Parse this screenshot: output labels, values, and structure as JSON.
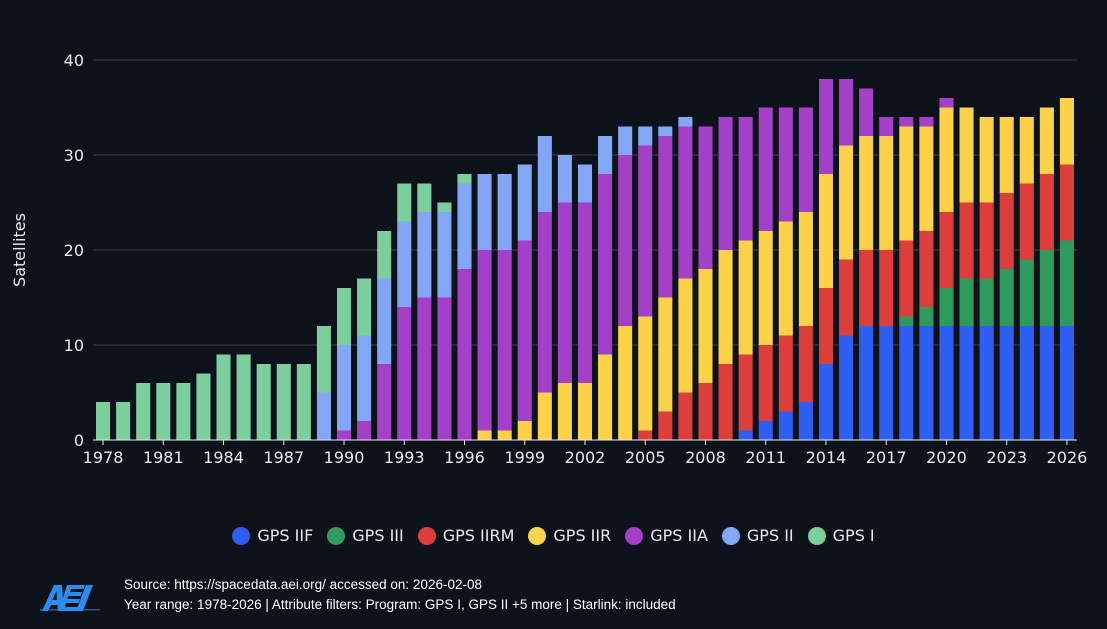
{
  "chart_data": {
    "type": "bar",
    "stacked": true,
    "ylabel": "Satellites",
    "xlabel": "",
    "ylim": [
      0,
      40
    ],
    "yticks": [
      0,
      10,
      20,
      30,
      40
    ],
    "xticks": [
      "1978",
      "1981",
      "1984",
      "1987",
      "1990",
      "1993",
      "1996",
      "1999",
      "2002",
      "2005",
      "2008",
      "2011",
      "2014",
      "2017",
      "2020",
      "2023",
      "2026"
    ],
    "categories": [
      1978,
      1979,
      1980,
      1981,
      1982,
      1983,
      1984,
      1985,
      1986,
      1987,
      1988,
      1989,
      1990,
      1991,
      1992,
      1993,
      1994,
      1995,
      1996,
      1997,
      1998,
      1999,
      2000,
      2001,
      2002,
      2003,
      2004,
      2005,
      2006,
      2007,
      2008,
      2009,
      2010,
      2011,
      2012,
      2013,
      2014,
      2015,
      2016,
      2017,
      2018,
      2019,
      2020,
      2021,
      2022,
      2023,
      2024,
      2025,
      2026
    ],
    "series": [
      {
        "name": "GPS IIF",
        "color": "#2f5ff2",
        "values": [
          0,
          0,
          0,
          0,
          0,
          0,
          0,
          0,
          0,
          0,
          0,
          0,
          0,
          0,
          0,
          0,
          0,
          0,
          0,
          0,
          0,
          0,
          0,
          0,
          0,
          0,
          0,
          0,
          0,
          0,
          0,
          0,
          1,
          2,
          3,
          4,
          8,
          11,
          12,
          12,
          12,
          12,
          12,
          12,
          12,
          12,
          12,
          12,
          12
        ]
      },
      {
        "name": "GPS III",
        "color": "#2e9a5e",
        "values": [
          0,
          0,
          0,
          0,
          0,
          0,
          0,
          0,
          0,
          0,
          0,
          0,
          0,
          0,
          0,
          0,
          0,
          0,
          0,
          0,
          0,
          0,
          0,
          0,
          0,
          0,
          0,
          0,
          0,
          0,
          0,
          0,
          0,
          0,
          0,
          0,
          0,
          0,
          0,
          0,
          1,
          2,
          4,
          5,
          5,
          6,
          7,
          8,
          9
        ]
      },
      {
        "name": "GPS IIRM",
        "color": "#dc3e3c",
        "values": [
          0,
          0,
          0,
          0,
          0,
          0,
          0,
          0,
          0,
          0,
          0,
          0,
          0,
          0,
          0,
          0,
          0,
          0,
          0,
          0,
          0,
          0,
          0,
          0,
          0,
          0,
          0,
          1,
          3,
          5,
          6,
          8,
          8,
          8,
          8,
          8,
          8,
          8,
          8,
          8,
          8,
          8,
          8,
          8,
          8,
          8,
          8,
          8,
          8
        ]
      },
      {
        "name": "GPS IIR",
        "color": "#fbd24a",
        "values": [
          0,
          0,
          0,
          0,
          0,
          0,
          0,
          0,
          0,
          0,
          0,
          0,
          0,
          0,
          0,
          0,
          0,
          0,
          0,
          1,
          1,
          2,
          5,
          6,
          6,
          9,
          12,
          12,
          12,
          12,
          12,
          12,
          12,
          12,
          12,
          12,
          12,
          12,
          12,
          12,
          12,
          11,
          11,
          10,
          9,
          8,
          7,
          7,
          7
        ]
      },
      {
        "name": "GPS IIA",
        "color": "#a43fc8",
        "values": [
          0,
          0,
          0,
          0,
          0,
          0,
          0,
          0,
          0,
          0,
          0,
          0,
          1,
          2,
          8,
          14,
          15,
          15,
          18,
          19,
          19,
          19,
          19,
          19,
          19,
          19,
          18,
          18,
          17,
          16,
          15,
          14,
          13,
          13,
          12,
          11,
          10,
          7,
          5,
          2,
          1,
          1,
          1,
          0,
          0,
          0,
          0,
          0,
          0
        ]
      },
      {
        "name": "GPS II",
        "color": "#84a6f6",
        "values": [
          0,
          0,
          0,
          0,
          0,
          0,
          0,
          0,
          0,
          0,
          0,
          5,
          9,
          9,
          9,
          9,
          9,
          9,
          9,
          8,
          8,
          8,
          8,
          5,
          4,
          4,
          3,
          2,
          1,
          1,
          0,
          0,
          0,
          0,
          0,
          0,
          0,
          0,
          0,
          0,
          0,
          0,
          0,
          0,
          0,
          0,
          0,
          0,
          0
        ]
      },
      {
        "name": "GPS I",
        "color": "#7ccf9c",
        "values": [
          4,
          4,
          6,
          6,
          6,
          7,
          9,
          9,
          8,
          8,
          8,
          7,
          6,
          6,
          5,
          4,
          3,
          1,
          1,
          0,
          0,
          0,
          0,
          0,
          0,
          0,
          0,
          0,
          0,
          0,
          0,
          0,
          0,
          0,
          0,
          0,
          0,
          0,
          0,
          0,
          0,
          0,
          0,
          0,
          0,
          0,
          0,
          0,
          0
        ]
      }
    ],
    "legend": [
      "GPS IIF",
      "GPS III",
      "GPS IIRM",
      "GPS IIR",
      "GPS IIA",
      "GPS II",
      "GPS I"
    ],
    "legend_position": "bottom-center"
  },
  "footer": {
    "logo_text": "AEI",
    "source_line": "Source: https://spacedata.aei.org/ accessed on: 2026-02-08",
    "filter_line": "Year range: 1978-2026 | Attribute filters: Program: GPS I, GPS II +5 more | Starlink: included"
  }
}
